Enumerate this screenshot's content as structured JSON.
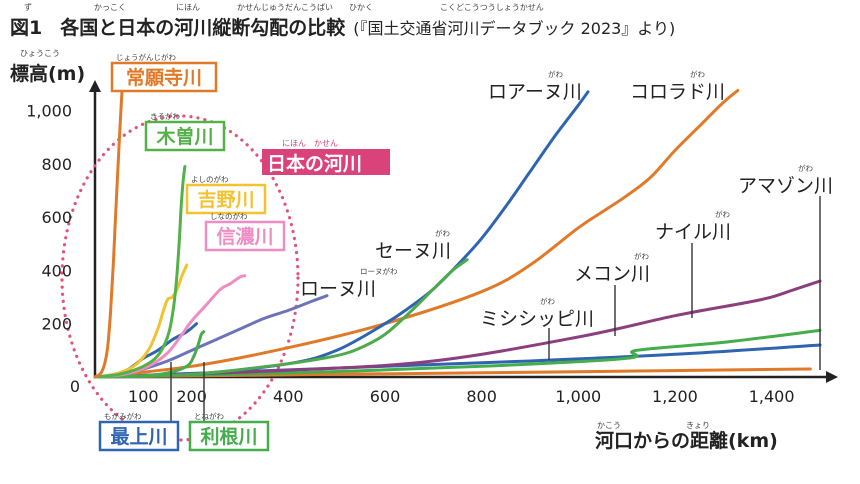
{
  "heading": {
    "figure_number": "図1",
    "title": "各国と日本の河川縦断勾配の比較",
    "source": "(『国土交通省河川データブック 2023』より)",
    "furigana": [
      {
        "text": "ず"
      },
      {
        "text": "かっこく"
      },
      {
        "text": "にほん"
      },
      {
        "text": "かせんじゅうだんこうばい"
      },
      {
        "text": "ひかく"
      },
      {
        "text": "こくどこうつうしょうかせん"
      }
    ]
  },
  "chart_data": {
    "type": "line",
    "ylabel": "標高(m)",
    "ylabel_ruby": "ひょうこう",
    "xlabel": "河口からの距離(km)",
    "xlabel_ruby": [
      {
        "text": "かこう"
      },
      {
        "text": "きょり"
      }
    ],
    "xlim": [
      0,
      1480
    ],
    "ylim": [
      0,
      1100
    ],
    "xticks": [
      "100",
      "200",
      "400",
      "600",
      "800",
      "1,000",
      "1,200",
      "1,400"
    ],
    "xtick_values": [
      100,
      200,
      400,
      600,
      800,
      1000,
      1200,
      1400
    ],
    "yticks": [
      "0",
      "200",
      "400",
      "600",
      "800",
      "1,000"
    ],
    "ytick_values": [
      0,
      200,
      400,
      600,
      800,
      1000
    ],
    "group_label": {
      "text": "日本の河川",
      "ruby": "にほん　かせん",
      "color": "#d9437a"
    },
    "series": [
      {
        "name": "常願寺川",
        "ruby": "じょうがんじがわ",
        "color": "#e07a28",
        "x": [
          0,
          8,
          14,
          20,
          26,
          32,
          38,
          44,
          50,
          56
        ],
        "y": [
          0,
          8,
          20,
          50,
          110,
          240,
          430,
          660,
          880,
          1080
        ]
      },
      {
        "name": "木曽川",
        "ruby": "きそがわ",
        "color": "#52b247",
        "x": [
          0,
          50,
          100,
          130,
          150,
          160,
          168,
          174,
          178,
          182,
          186
        ],
        "y": [
          0,
          10,
          40,
          80,
          150,
          230,
          350,
          500,
          630,
          730,
          790
        ]
      },
      {
        "name": "吉野川",
        "ruby": "よしのがわ",
        "color": "#f2c230",
        "x": [
          0,
          40,
          80,
          110,
          130,
          140,
          150,
          160,
          170,
          180,
          190
        ],
        "y": [
          0,
          10,
          40,
          100,
          180,
          240,
          290,
          300,
          330,
          380,
          420
        ]
      },
      {
        "name": "信濃川",
        "ruby": "しなのがわ",
        "color": "#ef8cc4",
        "x": [
          0,
          60,
          110,
          150,
          180,
          200,
          230,
          260,
          280,
          300,
          310
        ],
        "y": [
          0,
          10,
          40,
          90,
          160,
          210,
          270,
          330,
          350,
          375,
          380
        ]
      },
      {
        "name": "最上川",
        "ruby": "もがみがわ",
        "color": "#2f64b0",
        "x": [
          0,
          40,
          70,
          100,
          130,
          160,
          190,
          210
        ],
        "y": [
          0,
          10,
          30,
          70,
          100,
          140,
          170,
          200
        ]
      },
      {
        "name": "利根川",
        "ruby": "とねがわ",
        "color": "#45ad4b",
        "x": [
          0,
          100,
          150,
          190,
          205,
          215,
          220,
          225
        ],
        "y": [
          0,
          5,
          15,
          40,
          80,
          130,
          160,
          170
        ]
      },
      {
        "name": "ローヌ川",
        "ruby": "ローヌがわ",
        "color": "#6d73b8",
        "x": [
          0,
          50,
          100,
          150,
          200,
          250,
          300,
          350,
          400,
          450,
          480
        ],
        "y": [
          0,
          10,
          30,
          60,
          100,
          140,
          180,
          220,
          250,
          285,
          305
        ]
      },
      {
        "name": "セーヌ川",
        "ruby": "がわ",
        "color": "#4fa94d",
        "x": [
          0,
          200,
          400,
          500,
          550,
          600,
          650,
          700,
          740,
          770
        ],
        "y": [
          0,
          10,
          50,
          80,
          110,
          160,
          240,
          330,
          400,
          440
        ]
      },
      {
        "name": "ロアーヌ川",
        "ruby": "がわ",
        "color": "#2f64b0",
        "x": [
          0,
          200,
          400,
          500,
          600,
          650,
          700,
          750,
          800,
          850,
          900,
          950,
          1000,
          1020
        ],
        "y": [
          0,
          10,
          50,
          100,
          200,
          260,
          330,
          420,
          520,
          640,
          770,
          900,
          1020,
          1070
        ]
      },
      {
        "name": "コロラド川",
        "ruby": "がわ",
        "color": "#e07a28",
        "x": [
          0,
          200,
          400,
          600,
          800,
          900,
          1000,
          1050,
          1100,
          1150,
          1200,
          1250,
          1300,
          1330
        ],
        "y": [
          0,
          40,
          110,
          200,
          320,
          420,
          560,
          620,
          680,
          750,
          850,
          940,
          1030,
          1075
        ]
      },
      {
        "name": "アマゾン川",
        "ruby": "がわ",
        "color": "#2f64b0",
        "x": [
          0,
          300,
          600,
          900,
          1200,
          1500
        ],
        "y": [
          0,
          20,
          40,
          60,
          85,
          120
        ]
      },
      {
        "name": "ナイル川",
        "ruby": "がわ",
        "color": "#45ad4b",
        "x": [
          0,
          400,
          800,
          1100,
          1120,
          1300,
          1500
        ],
        "y": [
          0,
          15,
          40,
          70,
          100,
          130,
          175
        ]
      },
      {
        "name": "メコン川",
        "ruby": "がわ",
        "color": "#8b3f7e",
        "x": [
          0,
          400,
          700,
          1000,
          1200,
          1350,
          1400,
          1450,
          1500
        ],
        "y": [
          0,
          25,
          60,
          150,
          230,
          280,
          300,
          330,
          360
        ]
      },
      {
        "name": "ミシシッピ川",
        "ruby": "がわ",
        "color": "#e07a28",
        "x": [
          0,
          500,
          1000,
          1480
        ],
        "y": [
          0,
          10,
          20,
          30
        ]
      }
    ]
  }
}
